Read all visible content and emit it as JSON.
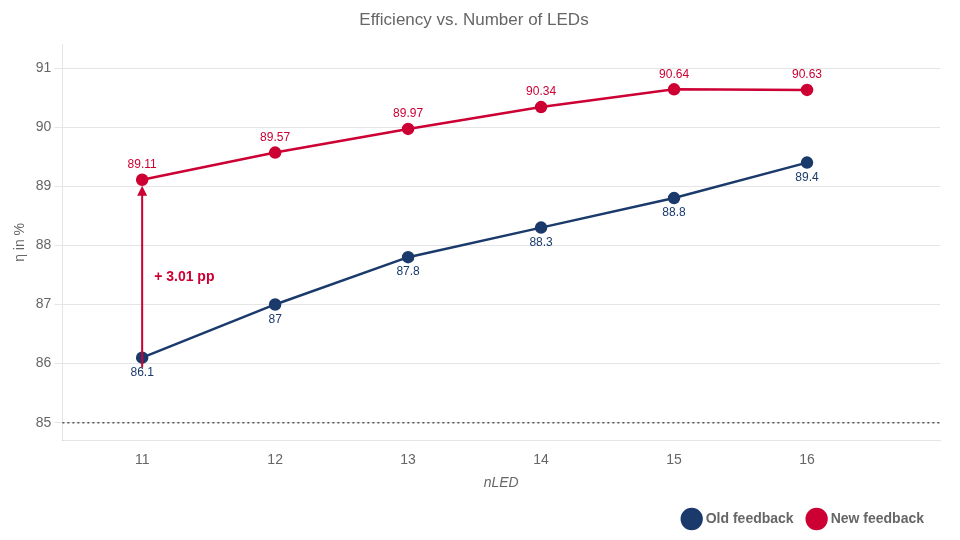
{
  "chart_data": {
    "type": "line",
    "title": "Efficiency vs. Number of LEDs",
    "xlabel": "nLED",
    "ylabel": "η in %",
    "x": [
      11,
      12,
      13,
      14,
      15,
      16
    ],
    "series": [
      {
        "name": "Old feedback",
        "color": "#1a3a6b",
        "marker": "circle",
        "values": [
          86.1,
          87.0,
          87.8,
          88.3,
          88.8,
          89.4
        ]
      },
      {
        "name": "New feedback",
        "color": "#cc0033",
        "marker": "circle",
        "values": [
          89.11,
          89.57,
          89.97,
          90.34,
          90.64,
          90.63
        ]
      }
    ],
    "xlim": [
      10.4,
      17.0
    ],
    "xticks": [
      11,
      12,
      13,
      14,
      15,
      16
    ],
    "ylim": [
      84.7,
      91.4
    ],
    "yticks": [
      85,
      86,
      87,
      88,
      89,
      90,
      91
    ],
    "grid": true,
    "legend": "lower right",
    "data_labels": true,
    "annotations": [
      {
        "type": "arrow",
        "text": "+ 3.01 pp",
        "x": 11,
        "y_start": 86.1,
        "y_end": 89.11,
        "color": "#cc0033"
      },
      {
        "type": "hline",
        "y": 85,
        "line_style": "dotted",
        "color": "#555555"
      }
    ]
  }
}
